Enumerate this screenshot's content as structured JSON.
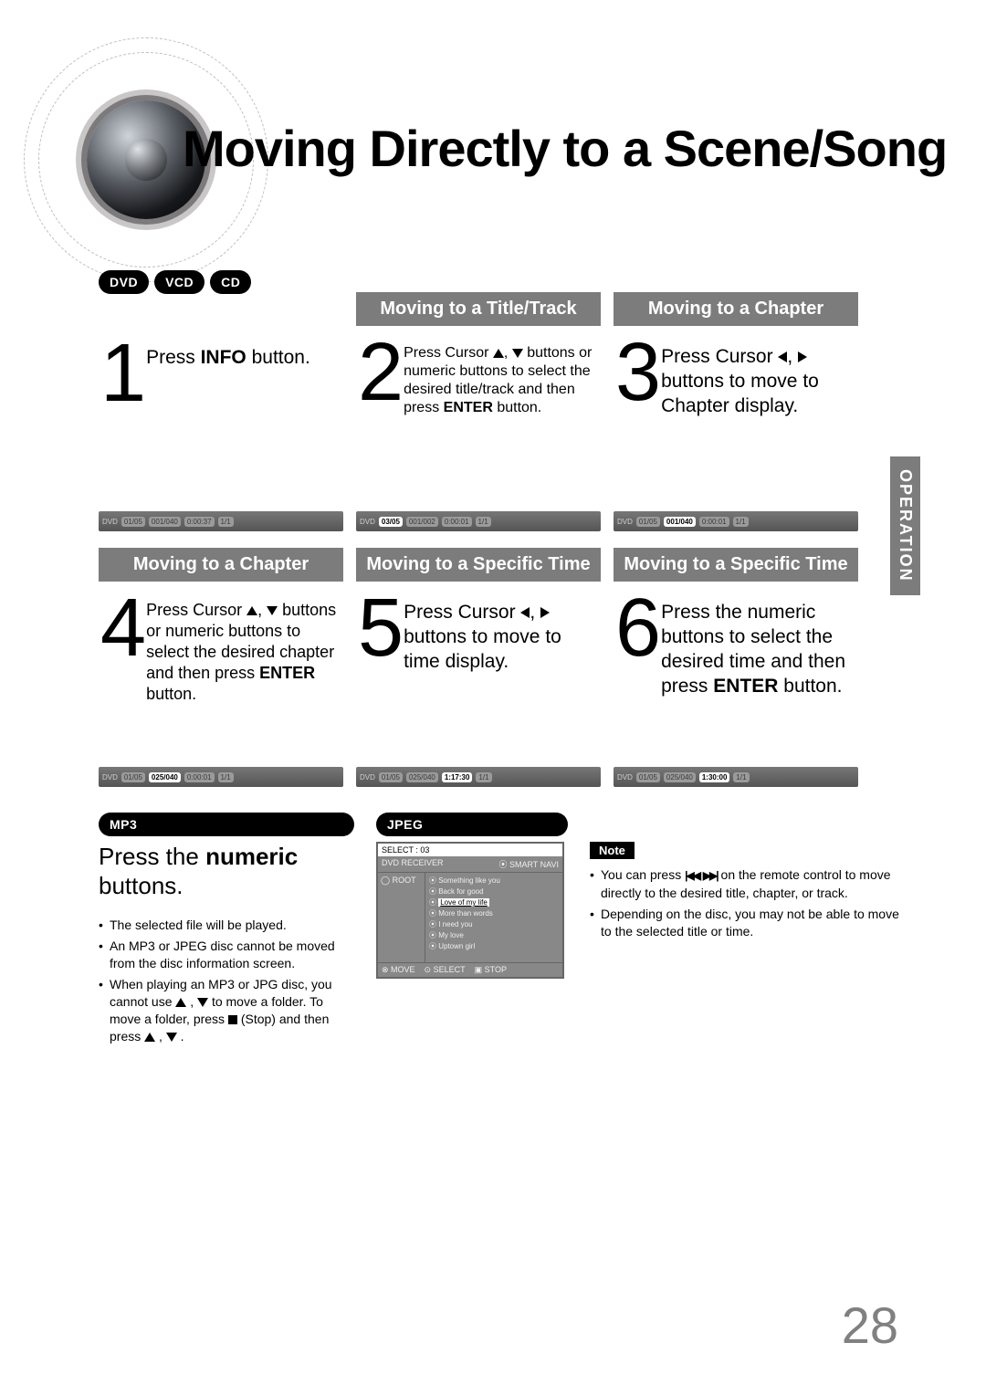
{
  "page_number": "28",
  "title": "Moving Directly to a Scene/Song",
  "vtab": "OPERATION",
  "badges_top": [
    "DVD",
    "VCD",
    "CD"
  ],
  "badges_bottom": [
    "MP3",
    "JPEG"
  ],
  "steps": [
    {
      "num": "1",
      "head": "",
      "text": "Press |B|INFO|/B| button.",
      "status": {
        "type": "DVD",
        "title": "01/05",
        "chapter": "001/040",
        "time": "0:00:37",
        "cam": "1/1",
        "hi": 0
      }
    },
    {
      "num": "2",
      "head": "Moving to a Title/Track",
      "text": "Press Cursor ▲, ▼ buttons or numeric buttons to select the desired title/track and then press |B|ENTER|/B| button.",
      "size": "xs",
      "status": {
        "type": "DVD",
        "title": "03/05",
        "chapter": "001/002",
        "time": "0:00:01",
        "cam": "1/1",
        "hi": 1
      }
    },
    {
      "num": "3",
      "head": "Moving to a Chapter",
      "text": "Press Cursor ◀, ▶ buttons to move to Chapter display.",
      "status": {
        "type": "DVD",
        "title": "01/05",
        "chapter": "001/040",
        "time": "0:00:01",
        "cam": "1/1",
        "hi": 2
      }
    },
    {
      "num": "4",
      "head": "Moving to a Chapter",
      "text": "Press Cursor ▲, ▼ buttons or numeric buttons to select the desired chapter and then press |B|ENTER|/B| button.",
      "size": "sm",
      "status": {
        "type": "DVD",
        "title": "01/05",
        "chapter": "025/040",
        "time": "0:00:01",
        "cam": "1/1",
        "hi": 2
      }
    },
    {
      "num": "5",
      "head": "Moving to a Specific Time",
      "text": "Press Cursor ◀, ▶ buttons to move to time display.",
      "status": {
        "type": "DVD",
        "title": "01/05",
        "chapter": "025/040",
        "time": "1:17:30",
        "cam": "1/1",
        "hi": 3
      }
    },
    {
      "num": "6",
      "head": "Moving to a Specific Time",
      "text": "Press the numeric buttons to select the desired time and then press |B|ENTER|/B| button.",
      "status": {
        "type": "DVD",
        "title": "01/05",
        "chapter": "025/040",
        "time": "1:30:00",
        "cam": "1/1",
        "hi": 3
      }
    }
  ],
  "mp3": {
    "head": "Press the |B|numeric|/B| buttons.",
    "bullets": [
      "The selected file will be played.",
      "An MP3 or JPEG disc cannot be moved from the disc information screen.",
      "When playing an MP3 or JPG disc, you cannot use ▲ , ▼   to move a folder. To move a folder, press ■ (Stop) and then press ▲ , ▼ ."
    ]
  },
  "menu": {
    "select": "SELECT :    03",
    "header_left": "DVD RECEIVER",
    "header_right": "⦿ SMART NAVI",
    "root": "◯ ROOT",
    "tracks": [
      "Something like you",
      "Back for good",
      "Love of my life",
      "More than words",
      "I need you",
      "My love",
      "Uptown girl"
    ],
    "selected_index": 2,
    "footer": [
      "⊗ MOVE",
      "⊙ SELECT",
      "▣ STOP"
    ]
  },
  "note": {
    "label": "Note",
    "items": [
      "You can press |SKIPB| |SKIPF| on the remote control to move directly to the desired title, chapter, or track.",
      "Depending on the disc, you may not be able to move to the selected title or time."
    ]
  }
}
